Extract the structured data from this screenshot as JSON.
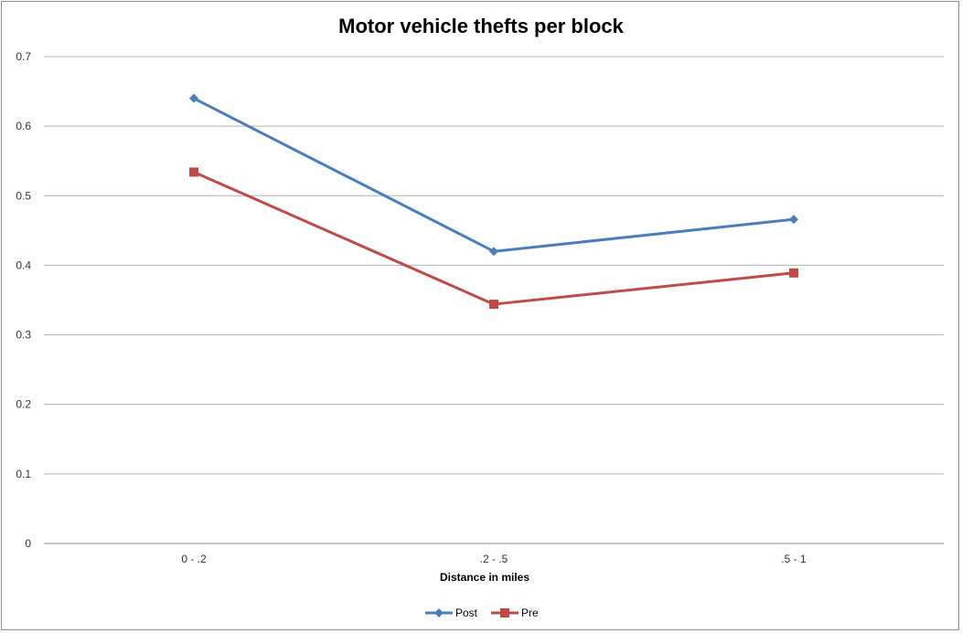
{
  "chart_data": {
    "type": "line",
    "title": "Motor vehicle thefts per block",
    "xlabel": "Distance in miles",
    "ylabel": "",
    "categories": [
      "0 - .2",
      ".2 - .5",
      ".5 - 1"
    ],
    "ylim": [
      0,
      0.7
    ],
    "yticks": [
      "0",
      "0.1",
      "0.2",
      "0.3",
      "0.4",
      "0.5",
      "0.6",
      "0.7"
    ],
    "grid": true,
    "legend_position": "bottom",
    "series": [
      {
        "name": "Post",
        "values": [
          0.64,
          0.42,
          0.466
        ],
        "color": "#4a7ebb",
        "marker": "diamond"
      },
      {
        "name": "Pre",
        "values": [
          0.534,
          0.344,
          0.389
        ],
        "color": "#be4b48",
        "marker": "square"
      }
    ]
  }
}
